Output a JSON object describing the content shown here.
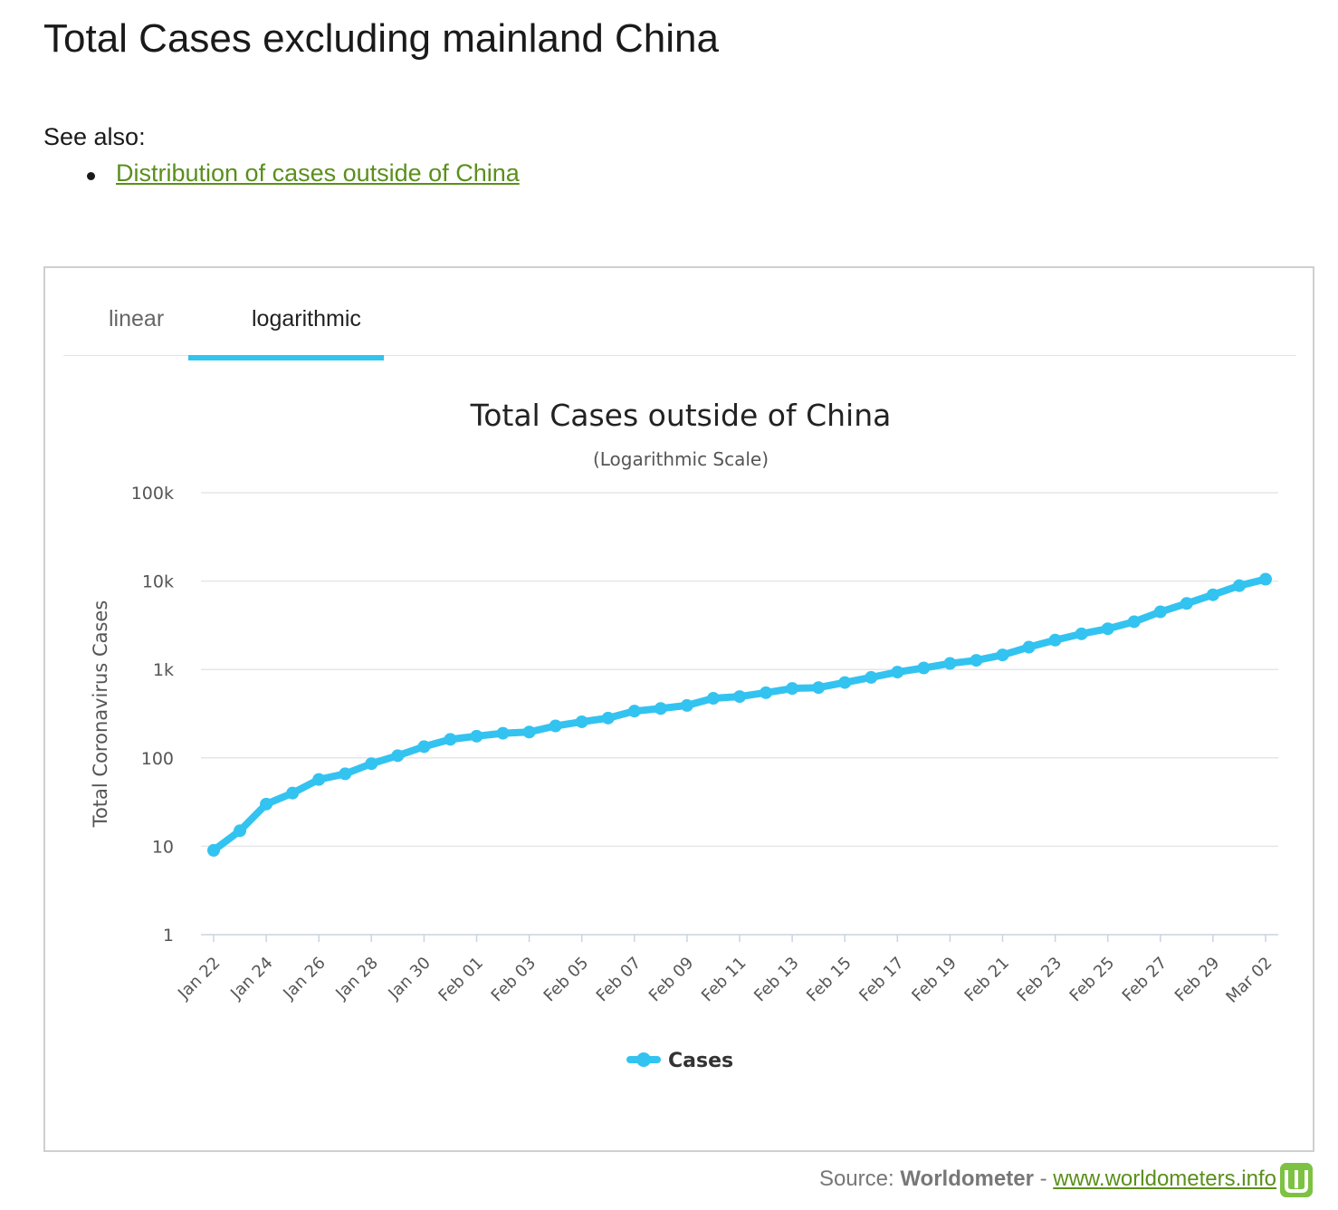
{
  "page": {
    "heading": "Total Cases excluding mainland China",
    "see_also_label": "See also:",
    "see_also_link": "Distribution of cases outside of China"
  },
  "tabs": {
    "linear": "linear",
    "logarithmic": "logarithmic",
    "active": "logarithmic",
    "accent_color": "#33c3f0"
  },
  "footer": {
    "prefix": "Source:",
    "brand": "Worldometer",
    "separator": "-",
    "url_text": "www.worldometers.info",
    "logo_color": "#7dc242"
  },
  "chart_data": {
    "type": "line",
    "title": "Total Cases outside of China",
    "subtitle": "(Logarithmic Scale)",
    "ylabel": "Total Coronavirus Cases",
    "xlabel": "",
    "y_scale": "log",
    "ylim": [
      1,
      100000
    ],
    "y_ticks": [
      {
        "value": 1,
        "label": "1"
      },
      {
        "value": 10,
        "label": "10"
      },
      {
        "value": 100,
        "label": "100"
      },
      {
        "value": 1000,
        "label": "1k"
      },
      {
        "value": 10000,
        "label": "10k"
      },
      {
        "value": 100000,
        "label": "100k"
      }
    ],
    "grid": true,
    "legend_position": "bottom-center",
    "categories": [
      "Jan 22",
      "Jan 23",
      "Jan 24",
      "Jan 25",
      "Jan 26",
      "Jan 27",
      "Jan 28",
      "Jan 29",
      "Jan 30",
      "Jan 31",
      "Feb 01",
      "Feb 02",
      "Feb 03",
      "Feb 04",
      "Feb 05",
      "Feb 06",
      "Feb 07",
      "Feb 08",
      "Feb 09",
      "Feb 10",
      "Feb 11",
      "Feb 12",
      "Feb 13",
      "Feb 14",
      "Feb 15",
      "Feb 16",
      "Feb 17",
      "Feb 18",
      "Feb 19",
      "Feb 20",
      "Feb 21",
      "Feb 22",
      "Feb 23",
      "Feb 24",
      "Feb 25",
      "Feb 26",
      "Feb 27",
      "Feb 28",
      "Feb 29",
      "Mar 01",
      "Mar 02"
    ],
    "x_tick_labels": [
      "Jan 22",
      "Jan 24",
      "Jan 26",
      "Jan 28",
      "Jan 30",
      "Feb 01",
      "Feb 03",
      "Feb 05",
      "Feb 07",
      "Feb 09",
      "Feb 11",
      "Feb 13",
      "Feb 15",
      "Feb 17",
      "Feb 19",
      "Feb 21",
      "Feb 23",
      "Feb 25",
      "Feb 27",
      "Feb 29",
      "Mar 02"
    ],
    "series": [
      {
        "name": "Cases",
        "color": "#33c3f0",
        "values": [
          9,
          15,
          30,
          40,
          57,
          66,
          86,
          106,
          134,
          162,
          176,
          190,
          196,
          230,
          256,
          282,
          338,
          362,
          392,
          472,
          494,
          546,
          610,
          624,
          712,
          814,
          934,
          1040,
          1170,
          1270,
          1460,
          1790,
          2150,
          2530,
          2890,
          3470,
          4490,
          5590,
          7000,
          8870,
          10500
        ]
      }
    ]
  }
}
